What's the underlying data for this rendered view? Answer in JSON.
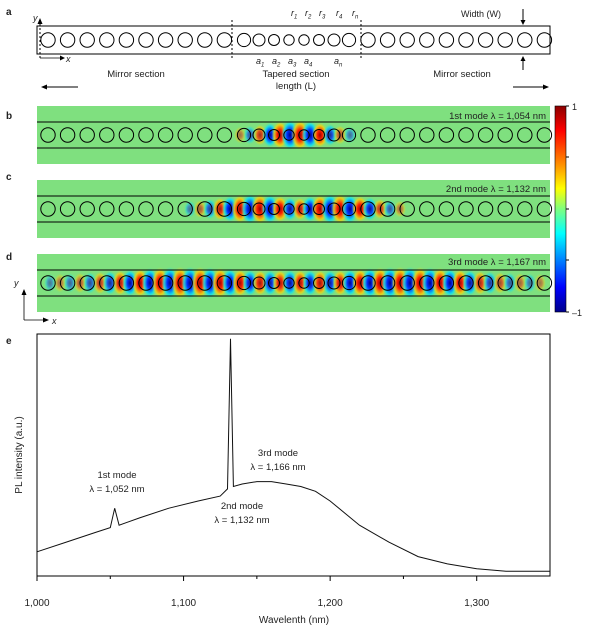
{
  "panels": {
    "a": {
      "letter": "a",
      "axis_y": "y",
      "axis_x": "x",
      "radii": [
        "r1",
        "r2",
        "r3",
        "r4",
        "rn"
      ],
      "radii_sub": [
        "1",
        "2",
        "3",
        "4",
        "n"
      ],
      "periods": [
        "a1",
        "a2",
        "a3",
        "a4",
        "an"
      ],
      "periods_sub": [
        "1",
        "2",
        "3",
        "4",
        "n"
      ],
      "width_label": "Width (W)",
      "mirror_left": "Mirror section",
      "tapered_line1": "Tapered section",
      "tapered_line2": "length (L)",
      "mirror_right": "Mirror section"
    },
    "b": {
      "letter": "b",
      "mode_label": "1st mode λ = 1,054 nm"
    },
    "c": {
      "letter": "c",
      "mode_label": "2nd mode λ = 1,132 nm"
    },
    "d": {
      "letter": "d",
      "mode_label": "3rd mode λ = 1,167 nm",
      "axis_y": "y",
      "axis_x": "x"
    },
    "e": {
      "letter": "e"
    }
  },
  "colorbar": {
    "ticks": [
      "1",
      "–1"
    ],
    "colors": [
      "#8b0000",
      "#ff0000",
      "#ff8c00",
      "#ffff00",
      "#7fff7f",
      "#00ffff",
      "#0080ff",
      "#0000ff",
      "#00008b"
    ]
  },
  "chart_data": {
    "type": "line",
    "xlabel": "Wavelenth (nm)",
    "ylabel": "PL intensity (a.u.)",
    "xlim": [
      1000,
      1350
    ],
    "ylim": [
      0,
      1
    ],
    "xticks": [
      1000,
      1100,
      1200,
      1300
    ],
    "xtick_labels": [
      "1,000",
      "1,100",
      "1,200",
      "1,300"
    ],
    "series": [
      {
        "x": [
          1000,
          1020,
          1040,
          1050,
          1053,
          1056,
          1070,
          1090,
          1110,
          1125,
          1130,
          1132,
          1134,
          1140,
          1150,
          1160,
          1170,
          1180,
          1190,
          1200,
          1210,
          1220,
          1240,
          1260,
          1280,
          1300,
          1320,
          1350
        ],
        "y": [
          0.1,
          0.14,
          0.18,
          0.2,
          0.28,
          0.21,
          0.24,
          0.28,
          0.31,
          0.33,
          0.36,
          0.98,
          0.37,
          0.38,
          0.39,
          0.39,
          0.38,
          0.37,
          0.35,
          0.31,
          0.26,
          0.21,
          0.14,
          0.08,
          0.05,
          0.03,
          0.02,
          0.02
        ]
      }
    ],
    "annotations": [
      {
        "line1": "1st mode",
        "line2": "λ = 1,052 nm"
      },
      {
        "line1": "2nd mode",
        "line2": "λ = 1,132 nm"
      },
      {
        "line1": "3rd mode",
        "line2": "λ = 1,166 nm"
      }
    ]
  }
}
